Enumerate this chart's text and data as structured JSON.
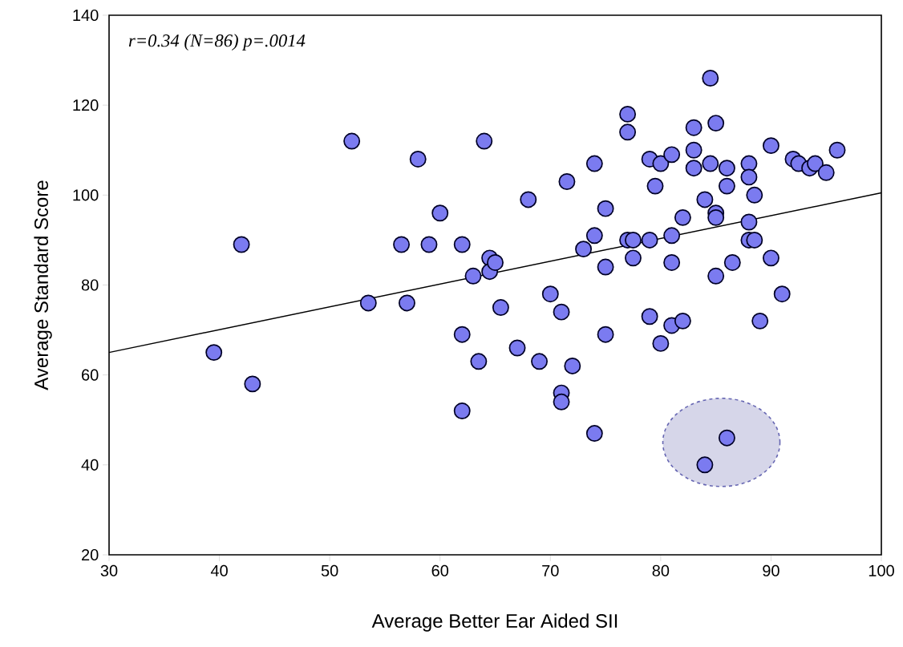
{
  "chart_data": {
    "type": "scatter",
    "xlabel": "Average Better Ear Aided SII",
    "ylabel": "Average Standard Score",
    "annotations": [
      "r=0.34 (N=86) p=.0014"
    ],
    "xlim": [
      30,
      100
    ],
    "ylim": [
      20,
      140
    ],
    "xticks": [
      30,
      40,
      50,
      60,
      70,
      80,
      90,
      100
    ],
    "yticks": [
      20,
      40,
      60,
      80,
      100,
      120,
      140
    ],
    "series": [
      {
        "color": "#7b7bf0",
        "marker": "circle",
        "x": [
          39.5,
          42,
          43,
          52,
          53.5,
          56.5,
          57,
          58,
          59,
          60,
          62,
          62,
          62,
          63,
          63.5,
          64,
          64.5,
          64.5,
          65,
          65.5,
          67,
          68,
          69,
          70,
          71,
          71,
          71,
          71.5,
          72,
          73,
          74,
          74,
          74,
          75,
          75,
          75,
          77,
          77,
          77,
          77.5,
          77.5,
          79,
          79,
          79,
          79.5,
          80,
          80,
          81,
          81,
          81,
          81,
          82,
          82,
          83,
          83,
          83,
          84,
          84.5,
          84.5,
          85,
          85,
          85,
          85,
          86,
          86,
          86.5,
          88,
          88,
          88,
          88,
          88.5,
          88.5,
          89,
          90,
          90,
          91,
          92,
          92.5,
          93.5,
          94,
          95,
          96,
          84,
          86
        ],
        "values": [
          65,
          89,
          58,
          112,
          76,
          89,
          76,
          108,
          89,
          96,
          89,
          69,
          52,
          82,
          63,
          112,
          86,
          83,
          85,
          75,
          66,
          99,
          63,
          78,
          74,
          56,
          54,
          103,
          62,
          88,
          107,
          91,
          47,
          97,
          84,
          69,
          118,
          114,
          90,
          90,
          86,
          108,
          90,
          73,
          102,
          107,
          67,
          109,
          91,
          85,
          71,
          95,
          72,
          115,
          110,
          106,
          99,
          126,
          107,
          116,
          96,
          95,
          82,
          106,
          102,
          85,
          107,
          104,
          94,
          90,
          100,
          90,
          72,
          111,
          86,
          78,
          108,
          107,
          106,
          107,
          105,
          110,
          40,
          46
        ]
      },
      {
        "type": "line",
        "color": "#000000",
        "x": [
          30,
          100
        ],
        "values": [
          65,
          100.5
        ]
      }
    ]
  }
}
